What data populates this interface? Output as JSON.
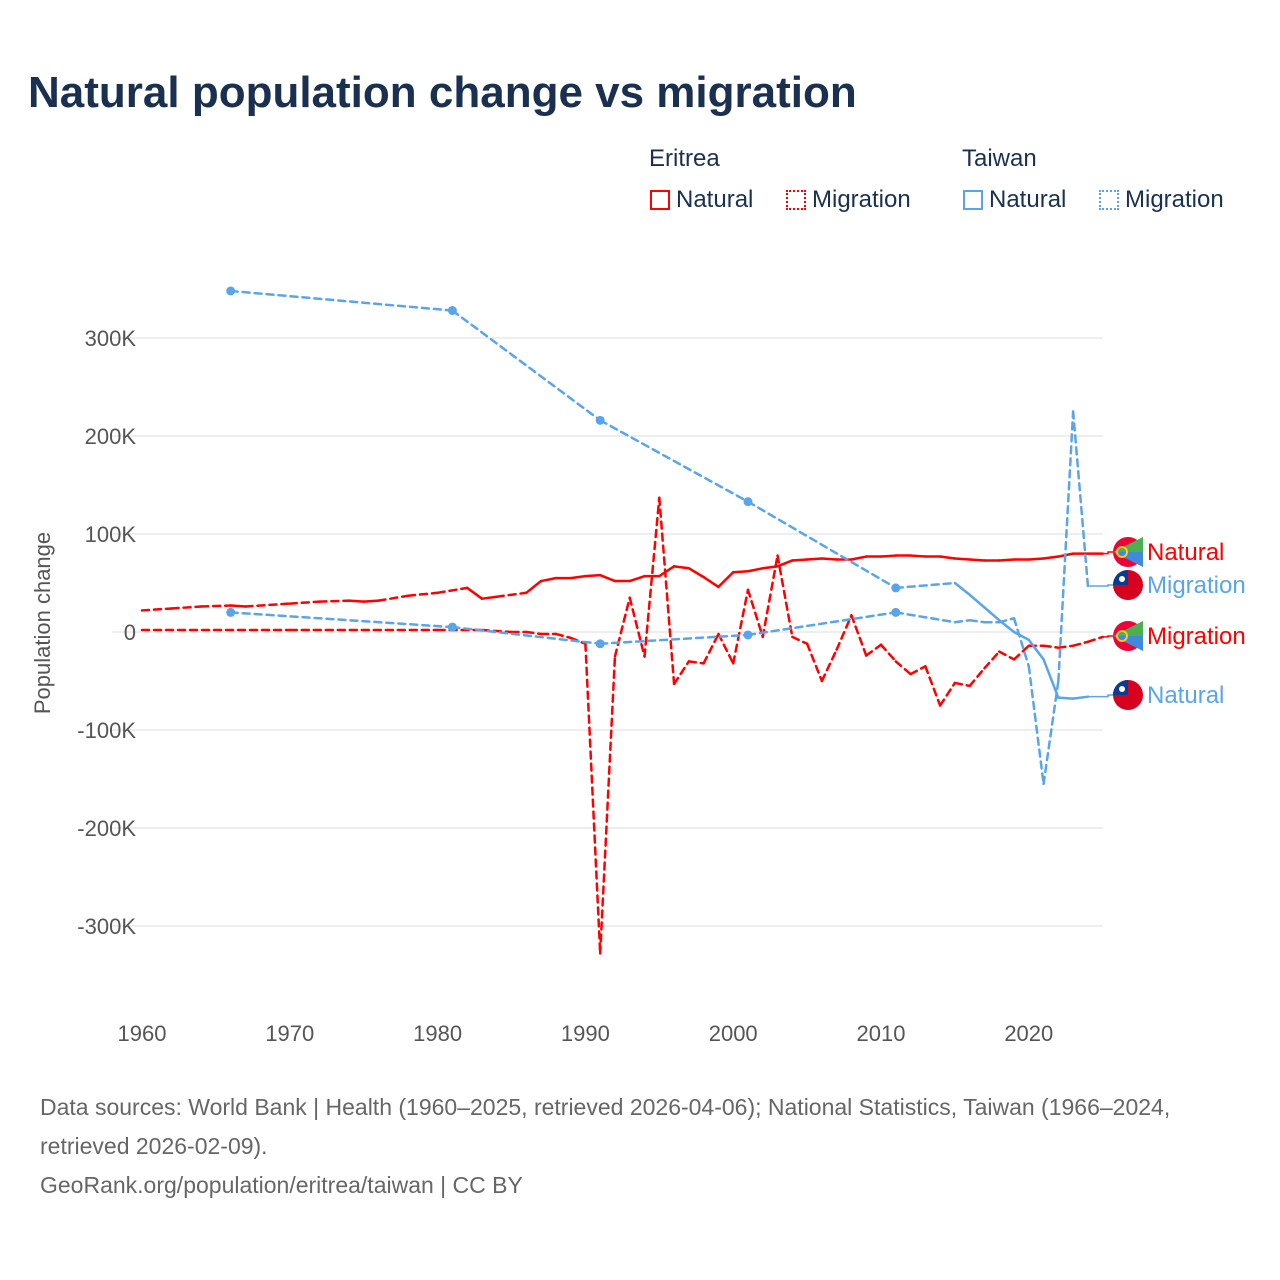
{
  "title": "Natural population change vs migration",
  "legend": {
    "groups": [
      {
        "name": "Eritrea",
        "items": [
          "Natural",
          "Migration"
        ],
        "color": "#ff0000"
      },
      {
        "name": "Taiwan",
        "items": [
          "Natural",
          "Migration"
        ],
        "color": "#5aa5ea"
      }
    ]
  },
  "footer": {
    "sources": "Data sources: World Bank | Health (1960–2025, retrieved 2026-04-06); National Statistics, Taiwan (1966–2024, retrieved 2026-02-09).",
    "link": "GeoRank.org/population/eritrea/taiwan | CC BY"
  },
  "chart_data": {
    "type": "line",
    "title": "Natural population change vs migration",
    "ylabel": "Population change",
    "xlabel": "",
    "xlim": [
      1960,
      2025
    ],
    "ylim": [
      -350000,
      360000
    ],
    "xticks": [
      1960,
      1970,
      1980,
      1990,
      2000,
      2010,
      2020
    ],
    "yticks": [
      {
        "v": 300000,
        "l": "300K"
      },
      {
        "v": 200000,
        "l": "200K"
      },
      {
        "v": 100000,
        "l": "100K"
      },
      {
        "v": 0,
        "l": "0"
      },
      {
        "v": -100000,
        "l": "-100K"
      },
      {
        "v": -200000,
        "l": "-200K"
      },
      {
        "v": -300000,
        "l": "-300K"
      }
    ],
    "grid": true,
    "series": [
      {
        "name": "Natural",
        "country": "Eritrea",
        "color": "#ff0000",
        "dash": false,
        "x": [
          1960,
          1962,
          1964,
          1966,
          1967,
          1970,
          1972,
          1974,
          1975,
          1976,
          1978,
          1980,
          1982,
          1983,
          1984,
          1986,
          1987,
          1988,
          1989,
          1990,
          1991,
          1992,
          1993,
          1994,
          1995,
          1996,
          1997,
          1998,
          1999,
          2000,
          2001,
          2002,
          2003,
          2004,
          2005,
          2006,
          2007,
          2008,
          2009,
          2010,
          2011,
          2012,
          2013,
          2014,
          2015,
          2016,
          2017,
          2018,
          2019,
          2020,
          2021,
          2022,
          2023,
          2024,
          2025
        ],
        "y": [
          22000,
          24000,
          26000,
          27000,
          26000,
          29000,
          31000,
          32000,
          31000,
          32000,
          37000,
          40000,
          45000,
          34000,
          36000,
          40000,
          52000,
          55000,
          55000,
          57000,
          58000,
          52000,
          52000,
          57000,
          57000,
          67000,
          65000,
          56000,
          46000,
          61000,
          62000,
          65000,
          67000,
          73000,
          74000,
          75000,
          74000,
          74000,
          77000,
          77000,
          78000,
          78000,
          77000,
          77000,
          75000,
          74000,
          73000,
          73000,
          74000,
          74000,
          75000,
          77000,
          80000,
          80000,
          80000
        ]
      },
      {
        "name": "Migration",
        "country": "Eritrea",
        "color": "#ff0000",
        "dash": true,
        "x": [
          1960,
          1970,
          1980,
          1983,
          1985,
          1986,
          1987,
          1988,
          1989,
          1990,
          1991,
          1992,
          1993,
          1994,
          1995,
          1996,
          1997,
          1998,
          1999,
          2000,
          2001,
          2002,
          2003,
          2004,
          2005,
          2006,
          2007,
          2008,
          2009,
          2010,
          2011,
          2012,
          2013,
          2014,
          2015,
          2016,
          2017,
          2018,
          2019,
          2020,
          2021,
          2022,
          2023,
          2024,
          2025
        ],
        "y": [
          2000,
          2000,
          2000,
          2000,
          0,
          0,
          -2000,
          -2000,
          -6000,
          -12000,
          -328000,
          -25000,
          35000,
          -25000,
          137000,
          -53000,
          -30000,
          -32000,
          -2000,
          -32000,
          43000,
          -5000,
          78000,
          -5000,
          -12000,
          -50000,
          -18000,
          17000,
          -24000,
          -13000,
          -30000,
          -43000,
          -35000,
          -75000,
          -52000,
          -55000,
          -37000,
          -20000,
          -28000,
          -14000,
          -14000,
          -16000,
          -14000,
          -10000,
          -5000
        ]
      },
      {
        "name": "Natural",
        "country": "Taiwan",
        "color": "#5aa5ea",
        "dash": false,
        "x": [
          1966,
          1981,
          1991,
          2001,
          2011,
          2015,
          2016,
          2017,
          2018,
          2019,
          2020,
          2021,
          2022,
          2023,
          2024
        ],
        "y": [
          348000,
          328000,
          216000,
          133000,
          45000,
          50000,
          38000,
          25000,
          12000,
          0,
          -8000,
          -28000,
          -67000,
          -68000,
          -66000
        ]
      },
      {
        "name": "Migration",
        "country": "Taiwan",
        "color": "#5aa5ea",
        "dash": true,
        "x": [
          1966,
          1981,
          1991,
          2001,
          2011,
          2015,
          2016,
          2017,
          2018,
          2019,
          2020,
          2021,
          2022,
          2023,
          2024
        ],
        "y": [
          20000,
          5000,
          -12000,
          -3000,
          20000,
          10000,
          12000,
          10000,
          10000,
          14000,
          -35000,
          -155000,
          -50000,
          225000,
          47000
        ]
      }
    ],
    "end_labels": [
      {
        "text": "Natural",
        "country": "Eritrea",
        "color": "#ff0000"
      },
      {
        "text": "Migration",
        "country": "Taiwan",
        "color": "#5aa5ea"
      },
      {
        "text": "Migration",
        "country": "Eritrea",
        "color": "#ff0000"
      },
      {
        "text": "Natural",
        "country": "Taiwan",
        "color": "#5aa5ea"
      }
    ]
  }
}
